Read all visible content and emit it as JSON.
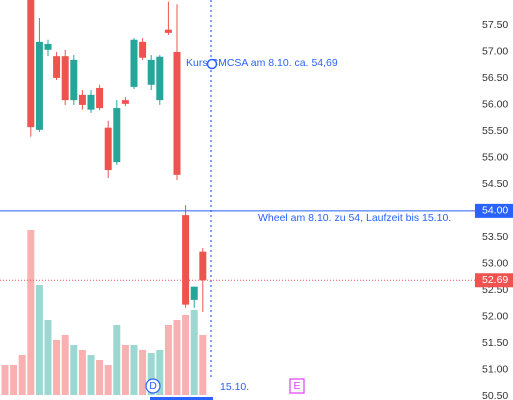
{
  "chart_data": {
    "type": "candlestick",
    "categories": [
      null,
      null,
      null,
      null,
      null,
      null,
      null,
      null,
      null,
      null,
      null,
      null,
      null,
      null,
      null,
      null,
      null,
      null,
      null,
      null,
      null,
      null,
      null,
      null
    ],
    "open": [
      null,
      null,
      null,
      58.1,
      55.53,
      57.04,
      56.92,
      56.92,
      56.09,
      56.19,
      55.91,
      56.32,
      55.57,
      54.92,
      56.09,
      56.34,
      57.19,
      56.38,
      56.09,
      57.42,
      57.0,
      53.92,
      52.32,
      53.23
    ],
    "high": [
      null,
      null,
      null,
      58.3,
      57.64,
      57.23,
      57.0,
      57.04,
      56.94,
      56.28,
      56.28,
      56.38,
      55.7,
      56.09,
      56.15,
      57.26,
      57.26,
      56.94,
      56.94,
      57.95,
      57.9,
      54.11,
      52.5,
      53.3
    ],
    "low": [
      null,
      null,
      null,
      55.4,
      55.49,
      56.92,
      56.47,
      56.0,
      56.0,
      55.91,
      55.85,
      55.9,
      54.62,
      54.87,
      55.98,
      56.3,
      56.85,
      56.28,
      56.0,
      57.32,
      54.58,
      52.17,
      52.17,
      52.09
    ],
    "close": [
      null,
      null,
      null,
      55.58,
      57.19,
      57.15,
      56.51,
      56.09,
      56.85,
      56.0,
      56.19,
      55.94,
      54.77,
      55.94,
      56.02,
      57.23,
      56.89,
      56.85,
      56.91,
      57.36,
      54.68,
      52.23,
      52.57,
      52.69
    ],
    "volume": [
      30,
      30,
      40,
      165,
      110,
      75,
      55,
      60,
      50,
      45,
      40,
      35,
      30,
      70,
      50,
      50,
      45,
      42,
      45,
      70,
      75,
      80,
      85,
      60
    ],
    "up_color": "#26a69a",
    "down_color": "#ef5350",
    "ylim": [
      50.43,
      57.98
    ],
    "yticks": [
      {
        "value": 50.5,
        "label": "50.50"
      },
      {
        "value": 51,
        "label": "51.00"
      },
      {
        "value": 51.5,
        "label": "51.50"
      },
      {
        "value": 52,
        "label": "52.00"
      },
      {
        "value": 52.5,
        "label": "52.50"
      },
      {
        "value": 53,
        "label": "53.00"
      },
      {
        "value": 53.5,
        "label": "53.50"
      },
      {
        "value": 54.5,
        "label": "54.50"
      },
      {
        "value": 55,
        "label": "55.00"
      },
      {
        "value": 55.5,
        "label": "55.50"
      },
      {
        "value": 56,
        "label": "56.00"
      },
      {
        "value": 56.5,
        "label": "56.50"
      },
      {
        "value": 57,
        "label": "57.00"
      },
      {
        "value": 57.5,
        "label": "57.50"
      }
    ],
    "price_line": {
      "value": 52.69,
      "label": "52.69"
    },
    "crosshair": {
      "value": 54,
      "label": "54.00"
    },
    "annotations": [
      "Kurs CMCSA am 8.10. ca. 54,69",
      "Wheel am 8.10. zu 54, Laufzeit bis 15.10.",
      "15.10."
    ],
    "markers": [
      "D",
      "E"
    ]
  }
}
